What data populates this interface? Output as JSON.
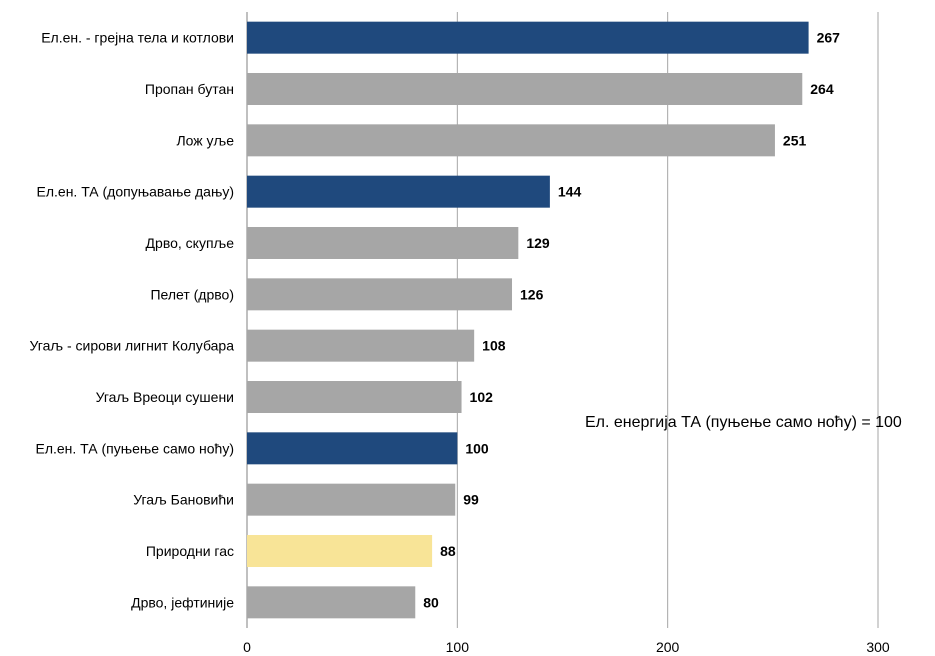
{
  "chart_data": {
    "type": "bar",
    "orientation": "horizontal",
    "categories": [
      "Ел.ен. - грејна тела и котлови",
      "Пропан бутан",
      "Лож уље",
      "Ел.ен. ТА (допуњавање дању)",
      "Дрво, скупље",
      "Пелет (дрво)",
      "Угаљ - сирови лигнит Колубара",
      "Угаљ Вреоци сушени",
      "Ел.ен. ТА (пуњење само ноћу)",
      "Угаљ Бановићи",
      "Природни гас",
      "Дрво, јефтиније"
    ],
    "values": [
      267,
      264,
      251,
      144,
      129,
      126,
      108,
      102,
      100,
      99,
      88,
      80
    ],
    "bar_colors": [
      "#1f497d",
      "#a6a6a6",
      "#a6a6a6",
      "#1f497d",
      "#a6a6a6",
      "#a6a6a6",
      "#a6a6a6",
      "#a6a6a6",
      "#1f497d",
      "#a6a6a6",
      "#f8e497",
      "#a6a6a6"
    ],
    "xlim": [
      0,
      300
    ],
    "xticks": [
      0,
      100,
      200,
      300
    ],
    "grid": "vertical",
    "title": "",
    "xlabel": "",
    "ylabel": "",
    "annotation": "Ел. енергија ТА (пуњење само ноћу) = 100"
  },
  "colors": {
    "electric": "#1f497d",
    "other": "#a6a6a6",
    "gas": "#f8e497",
    "grid": "#a6a6a6"
  }
}
